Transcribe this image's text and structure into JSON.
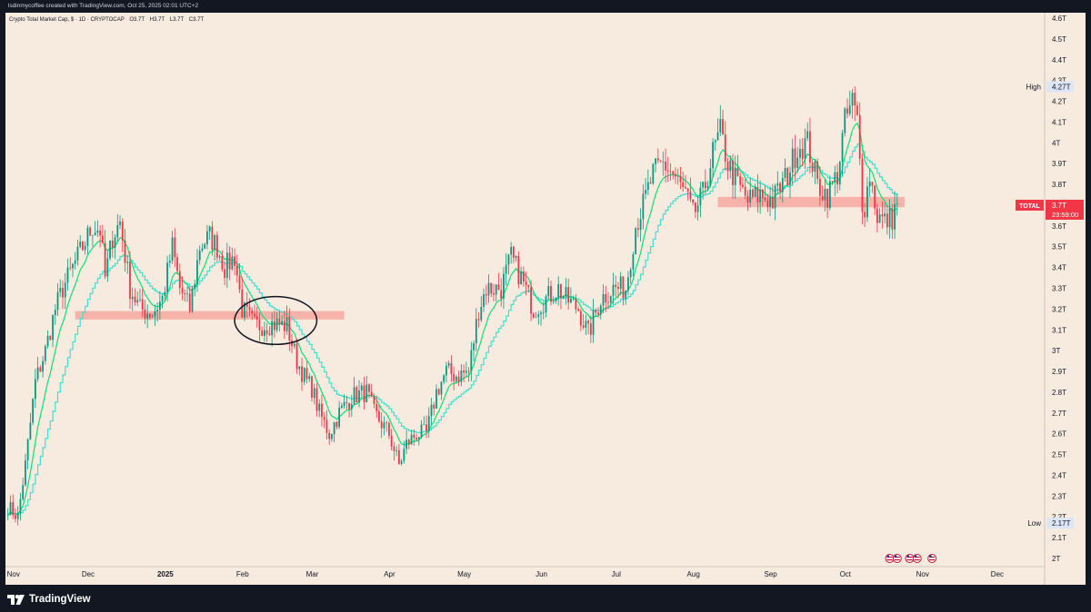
{
  "header": {
    "credit": "lsdinmycoffee created with TradingView.com, Oct 25, 2025 02:01 UTC+2"
  },
  "legend": {
    "title": "Crypto Total Market Cap, $ · 1D · CRYPTOCAP",
    "open": "O3.7T",
    "high": "H3.7T",
    "low": "L3.7T",
    "close": "C3.7T"
  },
  "footer": {
    "brand": "TradingView"
  },
  "colors": {
    "background": "#f7ebe0",
    "frame": "#131722",
    "up": "#089981",
    "down": "#f23645",
    "ema_fast": "#00e676",
    "ema_slow": "#40e0d0",
    "zone": "#f7a8a0",
    "total_badge": "#f23645",
    "high_low_badge": "#dce6f5"
  },
  "chart_data": {
    "type": "candlestick",
    "x_axis": {
      "ticks": [
        "Nov",
        "Dec",
        "2025",
        "Feb",
        "Mar",
        "Apr",
        "May",
        "Jun",
        "Jul",
        "Aug",
        "Sep",
        "Oct",
        "Nov",
        "Dec"
      ],
      "range": [
        "2024-11-01",
        "2025-12-30"
      ]
    },
    "y_axis": {
      "unit": "T",
      "range": [
        1.95,
        4.65
      ],
      "ticks": [
        "4.6T",
        "4.5T",
        "4.4T",
        "4.3T",
        "4.2T",
        "4.1T",
        "4T",
        "3.9T",
        "3.8T",
        "3.7T",
        "3.6T",
        "3.5T",
        "3.4T",
        "3.3T",
        "3.2T",
        "3.1T",
        "3T",
        "2.9T",
        "2.8T",
        "2.7T",
        "2.6T",
        "2.5T",
        "2.4T",
        "2.3T",
        "2.2T",
        "2.1T",
        "2T"
      ]
    },
    "series": [
      {
        "name": "Crypto Total Market Cap",
        "kind": "candles"
      },
      {
        "kind": "ema-fast",
        "color": "#00e676"
      },
      {
        "kind": "ema-slow-step",
        "color": "#40e0d0"
      }
    ],
    "anchors": [
      [
        "2024-11-01",
        2.25
      ],
      [
        "2024-11-05",
        2.2
      ],
      [
        "2024-11-08",
        2.45
      ],
      [
        "2024-11-12",
        2.85
      ],
      [
        "2024-11-16",
        3.0
      ],
      [
        "2024-11-20",
        3.2
      ],
      [
        "2024-11-23",
        3.3
      ],
      [
        "2024-11-27",
        3.4
      ],
      [
        "2024-12-01",
        3.5
      ],
      [
        "2024-12-05",
        3.6
      ],
      [
        "2024-12-08",
        3.58
      ],
      [
        "2024-12-10",
        3.35
      ],
      [
        "2024-12-13",
        3.55
      ],
      [
        "2024-12-16",
        3.62
      ],
      [
        "2024-12-20",
        3.3
      ],
      [
        "2024-12-24",
        3.2
      ],
      [
        "2024-12-29",
        3.18
      ],
      [
        "2025-01-02",
        3.25
      ],
      [
        "2025-01-06",
        3.5
      ],
      [
        "2025-01-09",
        3.3
      ],
      [
        "2025-01-13",
        3.2
      ],
      [
        "2025-01-17",
        3.5
      ],
      [
        "2025-01-21",
        3.55
      ],
      [
        "2025-01-24",
        3.5
      ],
      [
        "2025-01-27",
        3.4
      ],
      [
        "2025-01-31",
        3.45
      ],
      [
        "2025-02-03",
        3.2
      ],
      [
        "2025-02-08",
        3.12
      ],
      [
        "2025-02-15",
        3.13
      ],
      [
        "2025-02-21",
        3.12
      ],
      [
        "2025-02-25",
        2.95
      ],
      [
        "2025-03-01",
        2.85
      ],
      [
        "2025-03-03",
        2.82
      ],
      [
        "2025-03-06",
        2.7
      ],
      [
        "2025-03-10",
        2.6
      ],
      [
        "2025-03-14",
        2.7
      ],
      [
        "2025-03-19",
        2.78
      ],
      [
        "2025-03-25",
        2.8
      ],
      [
        "2025-03-28",
        2.7
      ],
      [
        "2025-04-03",
        2.6
      ],
      [
        "2025-04-07",
        2.45
      ],
      [
        "2025-04-10",
        2.55
      ],
      [
        "2025-04-14",
        2.6
      ],
      [
        "2025-04-18",
        2.6
      ],
      [
        "2025-04-22",
        2.8
      ],
      [
        "2025-04-26",
        2.9
      ],
      [
        "2025-04-30",
        2.88
      ],
      [
        "2025-05-05",
        2.9
      ],
      [
        "2025-05-09",
        3.2
      ],
      [
        "2025-05-12",
        3.3
      ],
      [
        "2025-05-18",
        3.3
      ],
      [
        "2025-05-22",
        3.45
      ],
      [
        "2025-05-26",
        3.35
      ],
      [
        "2025-05-31",
        3.2
      ],
      [
        "2025-06-05",
        3.25
      ],
      [
        "2025-06-10",
        3.3
      ],
      [
        "2025-06-13",
        3.25
      ],
      [
        "2025-06-18",
        3.2
      ],
      [
        "2025-06-22",
        3.08
      ],
      [
        "2025-06-27",
        3.25
      ],
      [
        "2025-07-02",
        3.3
      ],
      [
        "2025-07-07",
        3.3
      ],
      [
        "2025-07-11",
        3.6
      ],
      [
        "2025-07-14",
        3.7
      ],
      [
        "2025-07-18",
        3.85
      ],
      [
        "2025-07-22",
        3.9
      ],
      [
        "2025-07-26",
        3.85
      ],
      [
        "2025-07-31",
        3.75
      ],
      [
        "2025-08-03",
        3.65
      ],
      [
        "2025-08-07",
        3.75
      ],
      [
        "2025-08-11",
        3.95
      ],
      [
        "2025-08-14",
        4.05
      ],
      [
        "2025-08-17",
        3.9
      ],
      [
        "2025-08-21",
        3.8
      ],
      [
        "2025-08-25",
        3.72
      ],
      [
        "2025-08-30",
        3.75
      ],
      [
        "2025-09-04",
        3.72
      ],
      [
        "2025-09-10",
        3.85
      ],
      [
        "2025-09-14",
        3.98
      ],
      [
        "2025-09-18",
        4.0
      ],
      [
        "2025-09-22",
        3.8
      ],
      [
        "2025-09-26",
        3.75
      ],
      [
        "2025-09-30",
        3.85
      ],
      [
        "2025-10-03",
        4.1
      ],
      [
        "2025-10-06",
        4.2
      ],
      [
        "2025-10-08",
        4.1
      ],
      [
        "2025-10-10",
        3.72
      ],
      [
        "2025-10-11",
        3.7
      ],
      [
        "2025-10-13",
        3.85
      ],
      [
        "2025-10-16",
        3.65
      ],
      [
        "2025-10-19",
        3.62
      ],
      [
        "2025-10-22",
        3.64
      ],
      [
        "2025-10-24",
        3.72
      ]
    ],
    "zones": [
      {
        "from": "2024-11-28",
        "to": "2025-03-16",
        "low": 3.15,
        "high": 3.19
      },
      {
        "from": "2025-08-13",
        "to": "2025-10-27",
        "low": 3.69,
        "high": 3.74
      }
    ],
    "ellipse": {
      "from": "2025-01-31",
      "to": "2025-03-05",
      "low": 3.03,
      "high": 3.26
    },
    "price_badge": {
      "symbol": "TOTAL",
      "price": "3.7T",
      "countdown": "23:59:00",
      "value": 3.7
    },
    "high_label": {
      "text": "High",
      "value_text": "4.27T",
      "value": 4.27
    },
    "low_label": {
      "text": "Low",
      "value_text": "2.17T",
      "value": 2.17
    },
    "event_icon_dates": [
      "2025-10-21",
      "2025-10-24",
      "2025-10-29",
      "2025-11-01",
      "2025-11-07"
    ]
  }
}
